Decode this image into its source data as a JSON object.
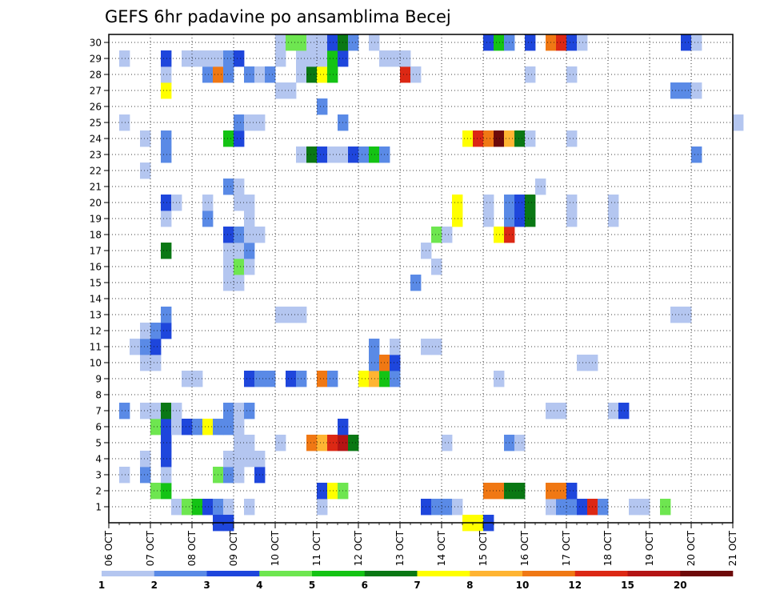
{
  "chart_data": {
    "type": "heatmap",
    "title": "GEFS 6hr padavine po ansamblima Becej",
    "xlabel": "",
    "ylabel": "",
    "x_range": [
      "06 OCT 00Z",
      "21 OCT 00Z"
    ],
    "x_tick_labels": [
      "06 OCT",
      "07 OCT",
      "08 OCT",
      "09 OCT",
      "10 OCT",
      "11 OCT",
      "12 OCT",
      "13 OCT",
      "14 OCT",
      "15 OCT",
      "16 OCT",
      "17 OCT",
      "18 OCT",
      "19 OCT",
      "20 OCT",
      "21 OCT"
    ],
    "y_tick_labels": [
      "1",
      "2",
      "3",
      "4",
      "5",
      "6",
      "7",
      "8",
      "9",
      "10",
      "11",
      "12",
      "13",
      "14",
      "15",
      "16",
      "17",
      "18",
      "19",
      "20",
      "21",
      "22",
      "23",
      "24",
      "25",
      "26",
      "27",
      "28",
      "29",
      "30"
    ],
    "grid": true,
    "colorbar": {
      "labels": [
        "1",
        "2",
        "3",
        "4",
        "5",
        "6",
        "7",
        "8",
        "10",
        "12",
        "15",
        "20"
      ],
      "colors": [
        "#b4c6f0",
        "#5a8ae6",
        "#1e46dc",
        "#6ee650",
        "#14c314",
        "#0a7814",
        "#ffff00",
        "#ffb432",
        "#f07814",
        "#dc2814",
        "#b41414",
        "#6e0a0a"
      ]
    },
    "cells": [
      [
        0,
        "07 OCT 12Z",
        1
      ],
      [
        0,
        "07 OCT 18Z",
        4
      ],
      [
        0,
        "08 OCT 00Z",
        5
      ],
      [
        0,
        "08 OCT 06Z",
        3
      ],
      [
        0,
        "08 OCT 12Z",
        2
      ],
      [
        0,
        "08 OCT 18Z",
        1
      ],
      [
        0,
        "09 OCT 06Z",
        1
      ],
      [
        0,
        "11 OCT 00Z",
        1
      ],
      [
        0,
        "13 OCT 12Z",
        3
      ],
      [
        0,
        "13 OCT 18Z",
        2
      ],
      [
        0,
        "14 OCT 00Z",
        2
      ],
      [
        0,
        "14 OCT 06Z",
        1
      ],
      [
        0,
        "16 OCT 12Z",
        1
      ],
      [
        0,
        "16 OCT 18Z",
        2
      ],
      [
        0,
        "17 OCT 00Z",
        2
      ],
      [
        0,
        "17 OCT 06Z",
        3
      ],
      [
        0,
        "17 OCT 12Z",
        14
      ],
      [
        0,
        "17 OCT 18Z",
        2
      ],
      [
        0,
        "18 OCT 12Z",
        1
      ],
      [
        0,
        "18 OCT 18Z",
        1
      ],
      [
        0,
        "19 OCT 06Z",
        4
      ],
      [
        1,
        "07 OCT 00Z",
        4
      ],
      [
        1,
        "07 OCT 06Z",
        5
      ],
      [
        1,
        "11 OCT 00Z",
        3
      ],
      [
        1,
        "11 OCT 06Z",
        7
      ],
      [
        1,
        "11 OCT 12Z",
        4
      ],
      [
        1,
        "15 OCT 00Z",
        10
      ],
      [
        1,
        "15 OCT 06Z",
        10
      ],
      [
        1,
        "15 OCT 12Z",
        6
      ],
      [
        1,
        "15 OCT 18Z",
        6
      ],
      [
        1,
        "16 OCT 12Z",
        10
      ],
      [
        1,
        "16 OCT 18Z",
        10
      ],
      [
        1,
        "17 OCT 00Z",
        3
      ],
      [
        2,
        "06 OCT 06Z",
        1
      ],
      [
        2,
        "06 OCT 18Z",
        2
      ],
      [
        2,
        "07 OCT 06Z",
        1
      ],
      [
        2,
        "08 OCT 12Z",
        4
      ],
      [
        2,
        "08 OCT 18Z",
        2
      ],
      [
        2,
        "09 OCT 00Z",
        1
      ],
      [
        2,
        "09 OCT 12Z",
        3
      ],
      [
        3,
        "06 OCT 18Z",
        1
      ],
      [
        3,
        "07 OCT 06Z",
        3
      ],
      [
        3,
        "08 OCT 18Z",
        1
      ],
      [
        3,
        "09 OCT 00Z",
        1
      ],
      [
        3,
        "09 OCT 06Z",
        1
      ],
      [
        3,
        "09 OCT 12Z",
        1
      ],
      [
        4,
        "07 OCT 06Z",
        3
      ],
      [
        4,
        "09 OCT 00Z",
        1
      ],
      [
        4,
        "09 OCT 06Z",
        1
      ],
      [
        4,
        "10 OCT 00Z",
        1
      ],
      [
        4,
        "10 OCT 18Z",
        10
      ],
      [
        4,
        "11 OCT 00Z",
        8
      ],
      [
        4,
        "11 OCT 06Z",
        12
      ],
      [
        4,
        "11 OCT 12Z",
        15
      ],
      [
        4,
        "11 OCT 18Z",
        6
      ],
      [
        4,
        "14 OCT 00Z",
        1
      ],
      [
        4,
        "15 OCT 12Z",
        2
      ],
      [
        4,
        "15 OCT 18Z",
        1
      ],
      [
        5,
        "07 OCT 00Z",
        4
      ],
      [
        5,
        "07 OCT 06Z",
        3
      ],
      [
        5,
        "07 OCT 12Z",
        1
      ],
      [
        5,
        "07 OCT 18Z",
        3
      ],
      [
        5,
        "08 OCT 00Z",
        2
      ],
      [
        5,
        "08 OCT 06Z",
        7
      ],
      [
        5,
        "08 OCT 12Z",
        2
      ],
      [
        5,
        "08 OCT 18Z",
        2
      ],
      [
        5,
        "09 OCT 00Z",
        1
      ],
      [
        5,
        "11 OCT 12Z",
        3
      ],
      [
        6,
        "06 OCT 06Z",
        2
      ],
      [
        6,
        "06 OCT 18Z",
        1
      ],
      [
        6,
        "07 OCT 00Z",
        1
      ],
      [
        6,
        "07 OCT 06Z",
        6
      ],
      [
        6,
        "07 OCT 12Z",
        1
      ],
      [
        6,
        "08 OCT 18Z",
        2
      ],
      [
        6,
        "09 OCT 00Z",
        1
      ],
      [
        6,
        "09 OCT 06Z",
        2
      ],
      [
        6,
        "16 OCT 12Z",
        1
      ],
      [
        6,
        "16 OCT 18Z",
        1
      ],
      [
        6,
        "18 OCT 00Z",
        1
      ],
      [
        6,
        "18 OCT 06Z",
        3
      ],
      [
        8,
        "07 OCT 18Z",
        1
      ],
      [
        8,
        "08 OCT 00Z",
        1
      ],
      [
        8,
        "09 OCT 06Z",
        3
      ],
      [
        8,
        "09 OCT 12Z",
        2
      ],
      [
        8,
        "09 OCT 18Z",
        2
      ],
      [
        8,
        "10 OCT 06Z",
        3
      ],
      [
        8,
        "10 OCT 12Z",
        2
      ],
      [
        8,
        "11 OCT 00Z",
        10
      ],
      [
        8,
        "11 OCT 06Z",
        2
      ],
      [
        8,
        "12 OCT 00Z",
        7
      ],
      [
        8,
        "12 OCT 06Z",
        8
      ],
      [
        8,
        "12 OCT 12Z",
        5
      ],
      [
        8,
        "12 OCT 18Z",
        2
      ],
      [
        8,
        "15 OCT 06Z",
        1
      ],
      [
        9,
        "06 OCT 18Z",
        1
      ],
      [
        9,
        "07 OCT 00Z",
        1
      ],
      [
        9,
        "12 OCT 06Z",
        2
      ],
      [
        9,
        "12 OCT 12Z",
        10
      ],
      [
        9,
        "12 OCT 18Z",
        3
      ],
      [
        9,
        "17 OCT 06Z",
        1
      ],
      [
        9,
        "17 OCT 12Z",
        1
      ],
      [
        10,
        "06 OCT 12Z",
        1
      ],
      [
        10,
        "06 OCT 18Z",
        2
      ],
      [
        10,
        "07 OCT 00Z",
        3
      ],
      [
        10,
        "12 OCT 06Z",
        2
      ],
      [
        10,
        "12 OCT 18Z",
        1
      ],
      [
        10,
        "13 OCT 12Z",
        1
      ],
      [
        10,
        "13 OCT 18Z",
        1
      ],
      [
        11,
        "06 OCT 18Z",
        1
      ],
      [
        11,
        "07 OCT 00Z",
        2
      ],
      [
        11,
        "07 OCT 06Z",
        3
      ],
      [
        12,
        "07 OCT 06Z",
        2
      ],
      [
        12,
        "10 OCT 00Z",
        1
      ],
      [
        12,
        "10 OCT 06Z",
        1
      ],
      [
        12,
        "10 OCT 12Z",
        1
      ],
      [
        12,
        "19 OCT 12Z",
        1
      ],
      [
        12,
        "19 OCT 18Z",
        1
      ],
      [
        14,
        "08 OCT 18Z",
        1
      ],
      [
        14,
        "09 OCT 00Z",
        1
      ],
      [
        14,
        "13 OCT 06Z",
        2
      ],
      [
        15,
        "08 OCT 18Z",
        1
      ],
      [
        15,
        "09 OCT 00Z",
        4
      ],
      [
        15,
        "09 OCT 06Z",
        1
      ],
      [
        15,
        "13 OCT 18Z",
        1
      ],
      [
        16,
        "07 OCT 06Z",
        6
      ],
      [
        16,
        "08 OCT 18Z",
        1
      ],
      [
        16,
        "09 OCT 00Z",
        1
      ],
      [
        16,
        "09 OCT 06Z",
        2
      ],
      [
        16,
        "13 OCT 12Z",
        1
      ],
      [
        17,
        "08 OCT 18Z",
        3
      ],
      [
        17,
        "09 OCT 00Z",
        2
      ],
      [
        17,
        "09 OCT 06Z",
        1
      ],
      [
        17,
        "09 OCT 12Z",
        1
      ],
      [
        17,
        "13 OCT 18Z",
        4
      ],
      [
        17,
        "14 OCT 00Z",
        1
      ],
      [
        17,
        "15 OCT 06Z",
        7
      ],
      [
        17,
        "15 OCT 12Z",
        14
      ],
      [
        18,
        "07 OCT 06Z",
        1
      ],
      [
        18,
        "08 OCT 06Z",
        2
      ],
      [
        18,
        "09 OCT 06Z",
        1
      ],
      [
        18,
        "14 OCT 06Z",
        7
      ],
      [
        18,
        "15 OCT 00Z",
        1
      ],
      [
        18,
        "15 OCT 12Z",
        2
      ],
      [
        18,
        "15 OCT 18Z",
        3
      ],
      [
        18,
        "16 OCT 00Z",
        6
      ],
      [
        18,
        "17 OCT 00Z",
        1
      ],
      [
        18,
        "18 OCT 00Z",
        1
      ],
      [
        19,
        "07 OCT 06Z",
        3
      ],
      [
        19,
        "07 OCT 12Z",
        1
      ],
      [
        19,
        "08 OCT 06Z",
        1
      ],
      [
        19,
        "09 OCT 00Z",
        1
      ],
      [
        19,
        "09 OCT 06Z",
        1
      ],
      [
        19,
        "14 OCT 06Z",
        7
      ],
      [
        19,
        "15 OCT 00Z",
        1
      ],
      [
        19,
        "15 OCT 12Z",
        2
      ],
      [
        19,
        "15 OCT 18Z",
        3
      ],
      [
        19,
        "16 OCT 00Z",
        6
      ],
      [
        19,
        "17 OCT 00Z",
        1
      ],
      [
        19,
        "18 OCT 00Z",
        1
      ],
      [
        20,
        "08 OCT 18Z",
        2
      ],
      [
        20,
        "09 OCT 00Z",
        1
      ],
      [
        20,
        "16 OCT 06Z",
        1
      ],
      [
        21,
        "06 OCT 18Z",
        1
      ],
      [
        22,
        "07 OCT 06Z",
        2
      ],
      [
        22,
        "10 OCT 12Z",
        1
      ],
      [
        22,
        "10 OCT 18Z",
        6
      ],
      [
        22,
        "11 OCT 00Z",
        3
      ],
      [
        22,
        "11 OCT 06Z",
        1
      ],
      [
        22,
        "11 OCT 12Z",
        1
      ],
      [
        22,
        "11 OCT 18Z",
        3
      ],
      [
        22,
        "12 OCT 00Z",
        2
      ],
      [
        22,
        "12 OCT 06Z",
        5
      ],
      [
        22,
        "12 OCT 12Z",
        2
      ],
      [
        22,
        "20 OCT 00Z",
        2
      ],
      [
        23,
        "06 OCT 18Z",
        1
      ],
      [
        23,
        "07 OCT 06Z",
        2
      ],
      [
        23,
        "08 OCT 18Z",
        5
      ],
      [
        23,
        "09 OCT 00Z",
        3
      ],
      [
        23,
        "14 OCT 12Z",
        7
      ],
      [
        23,
        "14 OCT 18Z",
        12
      ],
      [
        23,
        "15 OCT 00Z",
        10
      ],
      [
        23,
        "15 OCT 06Z",
        20
      ],
      [
        23,
        "15 OCT 12Z",
        8
      ],
      [
        23,
        "15 OCT 18Z",
        6
      ],
      [
        23,
        "16 OCT 00Z",
        1
      ],
      [
        23,
        "17 OCT 00Z",
        1
      ],
      [
        24,
        "06 OCT 06Z",
        1
      ],
      [
        24,
        "09 OCT 00Z",
        2
      ],
      [
        24,
        "09 OCT 06Z",
        1
      ],
      [
        24,
        "09 OCT 12Z",
        1
      ],
      [
        24,
        "11 OCT 12Z",
        2
      ],
      [
        24,
        "21 OCT 00Z",
        1
      ],
      [
        25,
        "11 OCT 00Z",
        2
      ],
      [
        26,
        "07 OCT 06Z",
        7
      ],
      [
        26,
        "10 OCT 00Z",
        1
      ],
      [
        26,
        "10 OCT 06Z",
        1
      ],
      [
        26,
        "19 OCT 12Z",
        2
      ],
      [
        26,
        "19 OCT 18Z",
        2
      ],
      [
        26,
        "20 OCT 00Z",
        1
      ],
      [
        27,
        "07 OCT 06Z",
        1
      ],
      [
        27,
        "08 OCT 06Z",
        2
      ],
      [
        27,
        "08 OCT 12Z",
        10
      ],
      [
        27,
        "08 OCT 18Z",
        2
      ],
      [
        27,
        "09 OCT 06Z",
        2
      ],
      [
        27,
        "09 OCT 12Z",
        1
      ],
      [
        27,
        "09 OCT 18Z",
        2
      ],
      [
        27,
        "10 OCT 12Z",
        1
      ],
      [
        27,
        "10 OCT 18Z",
        6
      ],
      [
        27,
        "11 OCT 00Z",
        7
      ],
      [
        27,
        "11 OCT 06Z",
        5
      ],
      [
        27,
        "13 OCT 00Z",
        12
      ],
      [
        27,
        "13 OCT 06Z",
        1
      ],
      [
        27,
        "16 OCT 00Z",
        1
      ],
      [
        27,
        "17 OCT 00Z",
        1
      ],
      [
        28,
        "06 OCT 06Z",
        1
      ],
      [
        28,
        "07 OCT 06Z",
        3
      ],
      [
        28,
        "07 OCT 18Z",
        1
      ],
      [
        28,
        "08 OCT 00Z",
        1
      ],
      [
        28,
        "08 OCT 06Z",
        1
      ],
      [
        28,
        "08 OCT 12Z",
        1
      ],
      [
        28,
        "08 OCT 18Z",
        2
      ],
      [
        28,
        "09 OCT 00Z",
        3
      ],
      [
        28,
        "10 OCT 00Z",
        1
      ],
      [
        28,
        "10 OCT 12Z",
        1
      ],
      [
        28,
        "10 OCT 18Z",
        1
      ],
      [
        28,
        "11 OCT 00Z",
        1
      ],
      [
        28,
        "11 OCT 06Z",
        5
      ],
      [
        28,
        "11 OCT 12Z",
        3
      ],
      [
        28,
        "12 OCT 12Z",
        1
      ],
      [
        28,
        "12 OCT 18Z",
        1
      ],
      [
        28,
        "13 OCT 00Z",
        1
      ],
      [
        29,
        "10 OCT 00Z",
        1
      ],
      [
        29,
        "10 OCT 06Z",
        4
      ],
      [
        29,
        "10 OCT 12Z",
        4
      ],
      [
        29,
        "10 OCT 18Z",
        1
      ],
      [
        29,
        "11 OCT 00Z",
        1
      ],
      [
        29,
        "11 OCT 06Z",
        3
      ],
      [
        29,
        "11 OCT 12Z",
        6
      ],
      [
        29,
        "11 OCT 18Z",
        2
      ],
      [
        29,
        "12 OCT 06Z",
        1
      ],
      [
        29,
        "15 OCT 00Z",
        3
      ],
      [
        29,
        "15 OCT 06Z",
        5
      ],
      [
        29,
        "15 OCT 12Z",
        2
      ],
      [
        29,
        "16 OCT 00Z",
        3
      ],
      [
        29,
        "16 OCT 12Z",
        10
      ],
      [
        29,
        "16 OCT 18Z",
        12
      ],
      [
        29,
        "17 OCT 00Z",
        3
      ],
      [
        29,
        "17 OCT 06Z",
        1
      ],
      [
        29,
        "19 OCT 18Z",
        3
      ],
      [
        29,
        "20 OCT 00Z",
        1
      ],
      [
        -1,
        "08 OCT 12Z",
        3
      ],
      [
        -1,
        "08 OCT 18Z",
        3
      ],
      [
        -1,
        "14 OCT 12Z",
        7
      ],
      [
        -1,
        "14 OCT 18Z",
        7
      ],
      [
        -1,
        "15 OCT 00Z",
        3
      ]
    ]
  }
}
